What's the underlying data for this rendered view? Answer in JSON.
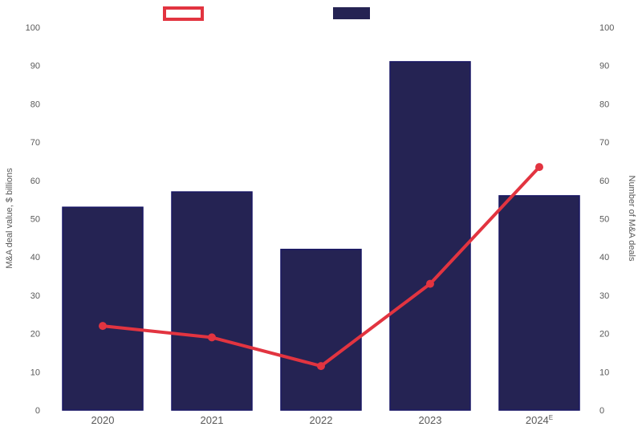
{
  "page": {
    "background_color": "#ffffff",
    "text_color": "#595959"
  },
  "legend": {
    "items": [
      {
        "name": "line-series-swatch",
        "style": "outlined",
        "color": "#e23440",
        "label": ""
      },
      {
        "name": "bar-series-swatch",
        "style": "filled",
        "color": "#252353",
        "label": ""
      }
    ]
  },
  "axes": {
    "left_title": "M&A deal value, $ billions",
    "right_title": "Number of M&A deals",
    "tick_values": [
      0,
      10,
      20,
      30,
      40,
      50,
      60,
      70,
      80,
      90,
      100
    ]
  },
  "chart_data": {
    "type": "bar",
    "title": "",
    "categories": [
      "2020",
      "2021",
      "2022",
      "2023",
      "2024E"
    ],
    "categories_display": [
      {
        "text": "2020",
        "sup": ""
      },
      {
        "text": "2021",
        "sup": ""
      },
      {
        "text": "2022",
        "sup": ""
      },
      {
        "text": "2023",
        "sup": ""
      },
      {
        "text": "2024",
        "sup": "E"
      }
    ],
    "series": [
      {
        "name": "M&A deal value, $ billions",
        "type": "bar",
        "axis": "left",
        "color": "#252353",
        "border_color": "#191765",
        "values": [
          53,
          57,
          42,
          91,
          56
        ]
      },
      {
        "name": "Number of M&A deals",
        "type": "line",
        "axis": "right",
        "color": "#e23440",
        "values": [
          22,
          19,
          11.5,
          33,
          63.5
        ]
      }
    ],
    "xlabel": "",
    "ylabel": "M&A deal value, $ billions",
    "ylabel_right": "Number of M&A deals",
    "ylim": [
      0,
      100
    ],
    "ytick_step": 10,
    "grid": false,
    "legend_position": "top"
  }
}
